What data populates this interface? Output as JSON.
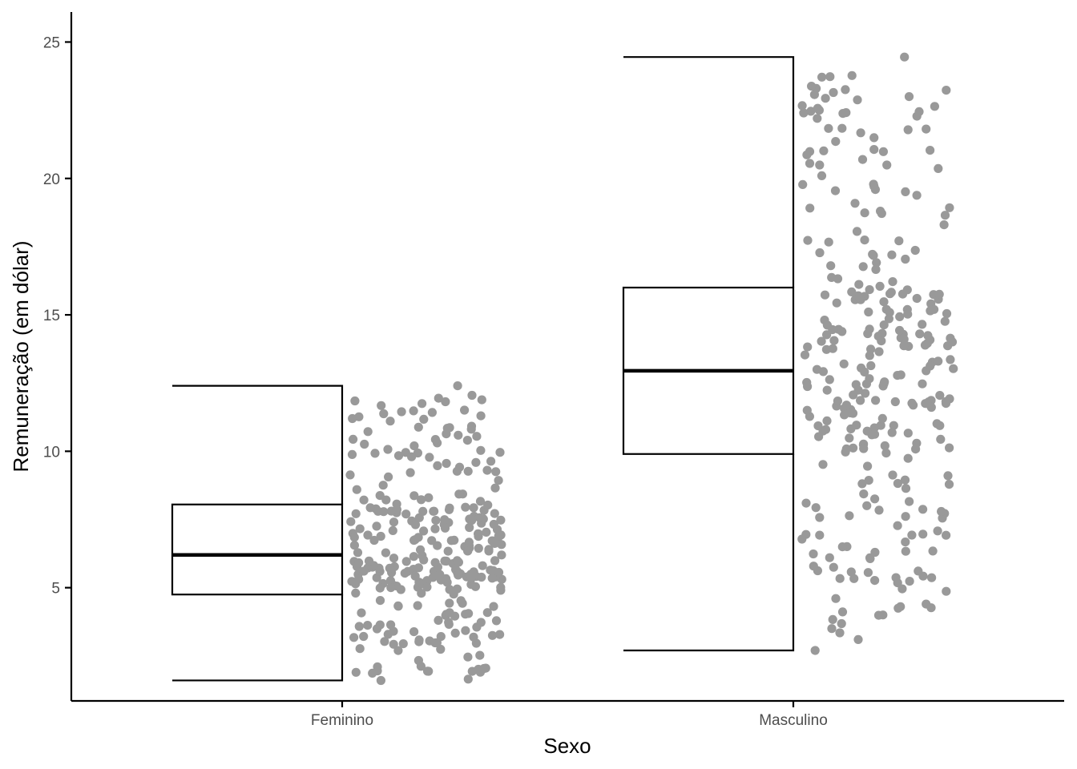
{
  "chart_data": {
    "type": "box-jitter",
    "title": "",
    "xlabel": "Sexo",
    "ylabel": "Remuneração (em dólar)",
    "categories": [
      "Feminino",
      "Masculino"
    ],
    "yticks": [
      5,
      10,
      15,
      20,
      25
    ],
    "ylim": [
      0.85,
      26.1
    ],
    "grid": false,
    "legend": "none",
    "point_color": "#999999",
    "box_color": "#000000",
    "boxes": [
      {
        "category": "Feminino",
        "min": 1.6,
        "q1": 4.75,
        "median": 6.2,
        "q3": 8.05,
        "max": 12.4
      },
      {
        "category": "Masculino",
        "min": 2.7,
        "q1": 9.9,
        "median": 12.95,
        "q3": 16.0,
        "max": 24.45
      }
    ],
    "series": [
      {
        "category": "Feminino",
        "n": 300,
        "min": 1.6,
        "q1": 4.75,
        "median": 6.2,
        "q3": 8.05,
        "max": 12.4,
        "extremes": [
          1.6,
          1.65,
          1.9,
          1.95,
          11.75,
          11.45,
          12.4
        ]
      },
      {
        "category": "Masculino",
        "n": 300,
        "min": 2.7,
        "q1": 9.9,
        "median": 12.95,
        "q3": 16.0,
        "max": 24.45,
        "extremes": [
          2.7,
          3.1,
          3.5,
          4.0,
          23.0,
          22.5,
          24.45
        ]
      }
    ]
  }
}
